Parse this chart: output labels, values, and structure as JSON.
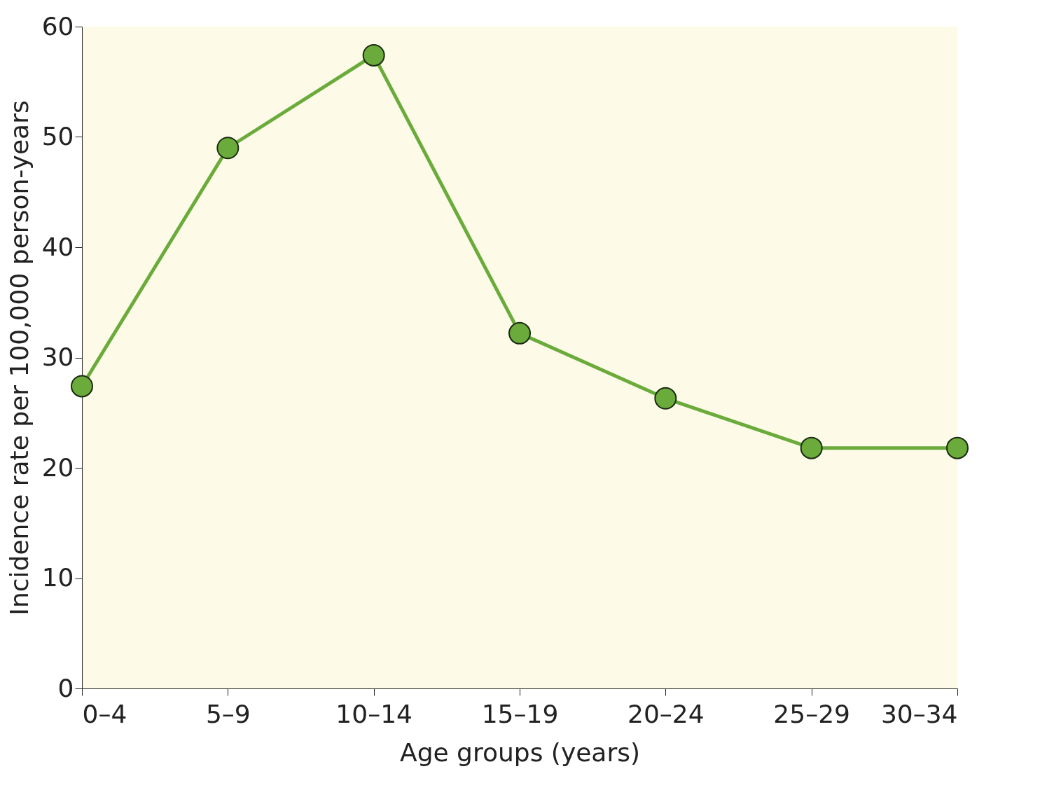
{
  "chart_data": {
    "type": "line",
    "xlabel": "Age groups (years)",
    "ylabel": "Incidence rate per 100,000 person-years",
    "categories": [
      "0–4",
      "5–9",
      "10–14",
      "15–19",
      "20–24",
      "25–29",
      "30–34"
    ],
    "series": [
      {
        "color": "#6aab3b",
        "values": [
          27.4,
          49,
          57.4,
          32.2,
          26.3,
          21.8,
          21.8
        ]
      }
    ],
    "ylim": [
      0,
      60
    ],
    "yticks": [
      0,
      10,
      20,
      30,
      40,
      50,
      60
    ],
    "grid": false,
    "legend": false,
    "marker": "circle",
    "line_style": "solid"
  }
}
